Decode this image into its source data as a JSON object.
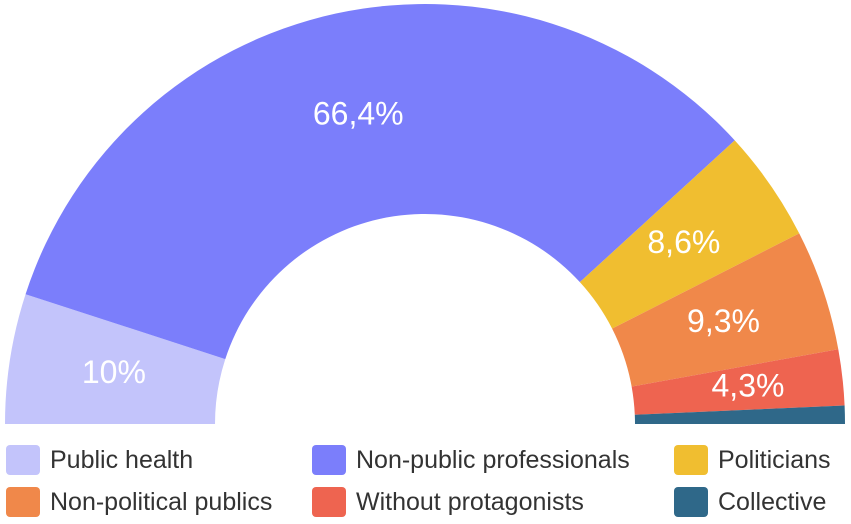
{
  "chart_data": {
    "type": "pie",
    "subtype": "half-donut",
    "title": "",
    "slices": [
      {
        "name": "Public health",
        "value": 10,
        "label": "10%",
        "color": "#C3C4FB"
      },
      {
        "name": "Non-public professionals",
        "value": 66.4,
        "label": "66,4%",
        "color": "#7B7EFB"
      },
      {
        "name": "Politicians",
        "value": 8.6,
        "label": "8,6%",
        "color": "#F0BE30"
      },
      {
        "name": "Non-political publics",
        "value": 9.3,
        "label": "9,3%",
        "color": "#F0884A"
      },
      {
        "name": "Without protagonists",
        "value": 4.3,
        "label": "4,3%",
        "color": "#EE6450"
      },
      {
        "name": "Collective",
        "value": 1.4,
        "label": "",
        "color": "#2F6889"
      }
    ],
    "legend": {
      "placement": "bottom",
      "entries": [
        "Public health",
        "Non-public professionals",
        "Politicians",
        "Non-political publics",
        "Without protagonists",
        "Collective"
      ]
    }
  }
}
